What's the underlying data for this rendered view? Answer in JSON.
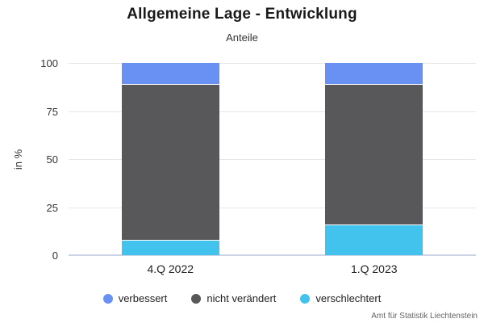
{
  "header": {
    "title": "Allgemeine Lage - Entwicklung",
    "subtitle": "Anteile"
  },
  "chart_data": {
    "type": "bar",
    "stacked": true,
    "title": "Allgemeine Lage - Entwicklung",
    "subtitle": "Anteile",
    "categories": [
      "4.Q 2022",
      "1.Q 2023"
    ],
    "series": [
      {
        "name": "verbessert",
        "color": "#6991f3",
        "values": [
          11,
          11
        ]
      },
      {
        "name": "nicht verändert",
        "color": "#58585a",
        "values": [
          81,
          73
        ]
      },
      {
        "name": "verschlechtert",
        "color": "#41c3ee",
        "values": [
          8,
          16
        ]
      }
    ],
    "xlabel": "",
    "ylabel": "in %",
    "ylim": [
      0,
      100
    ],
    "yticks": [
      0,
      25,
      50,
      75,
      100
    ],
    "grid": true,
    "legend_position": "bottom",
    "bar_width_pct": 24,
    "colors": {
      "gridline": "#e8e8e8",
      "zero_line": "#ccd3e4",
      "title_text": "#1a1a1a",
      "axis_text": "#333333"
    }
  },
  "footer": {
    "source": "Amt für Statistik Liechtenstein"
  }
}
